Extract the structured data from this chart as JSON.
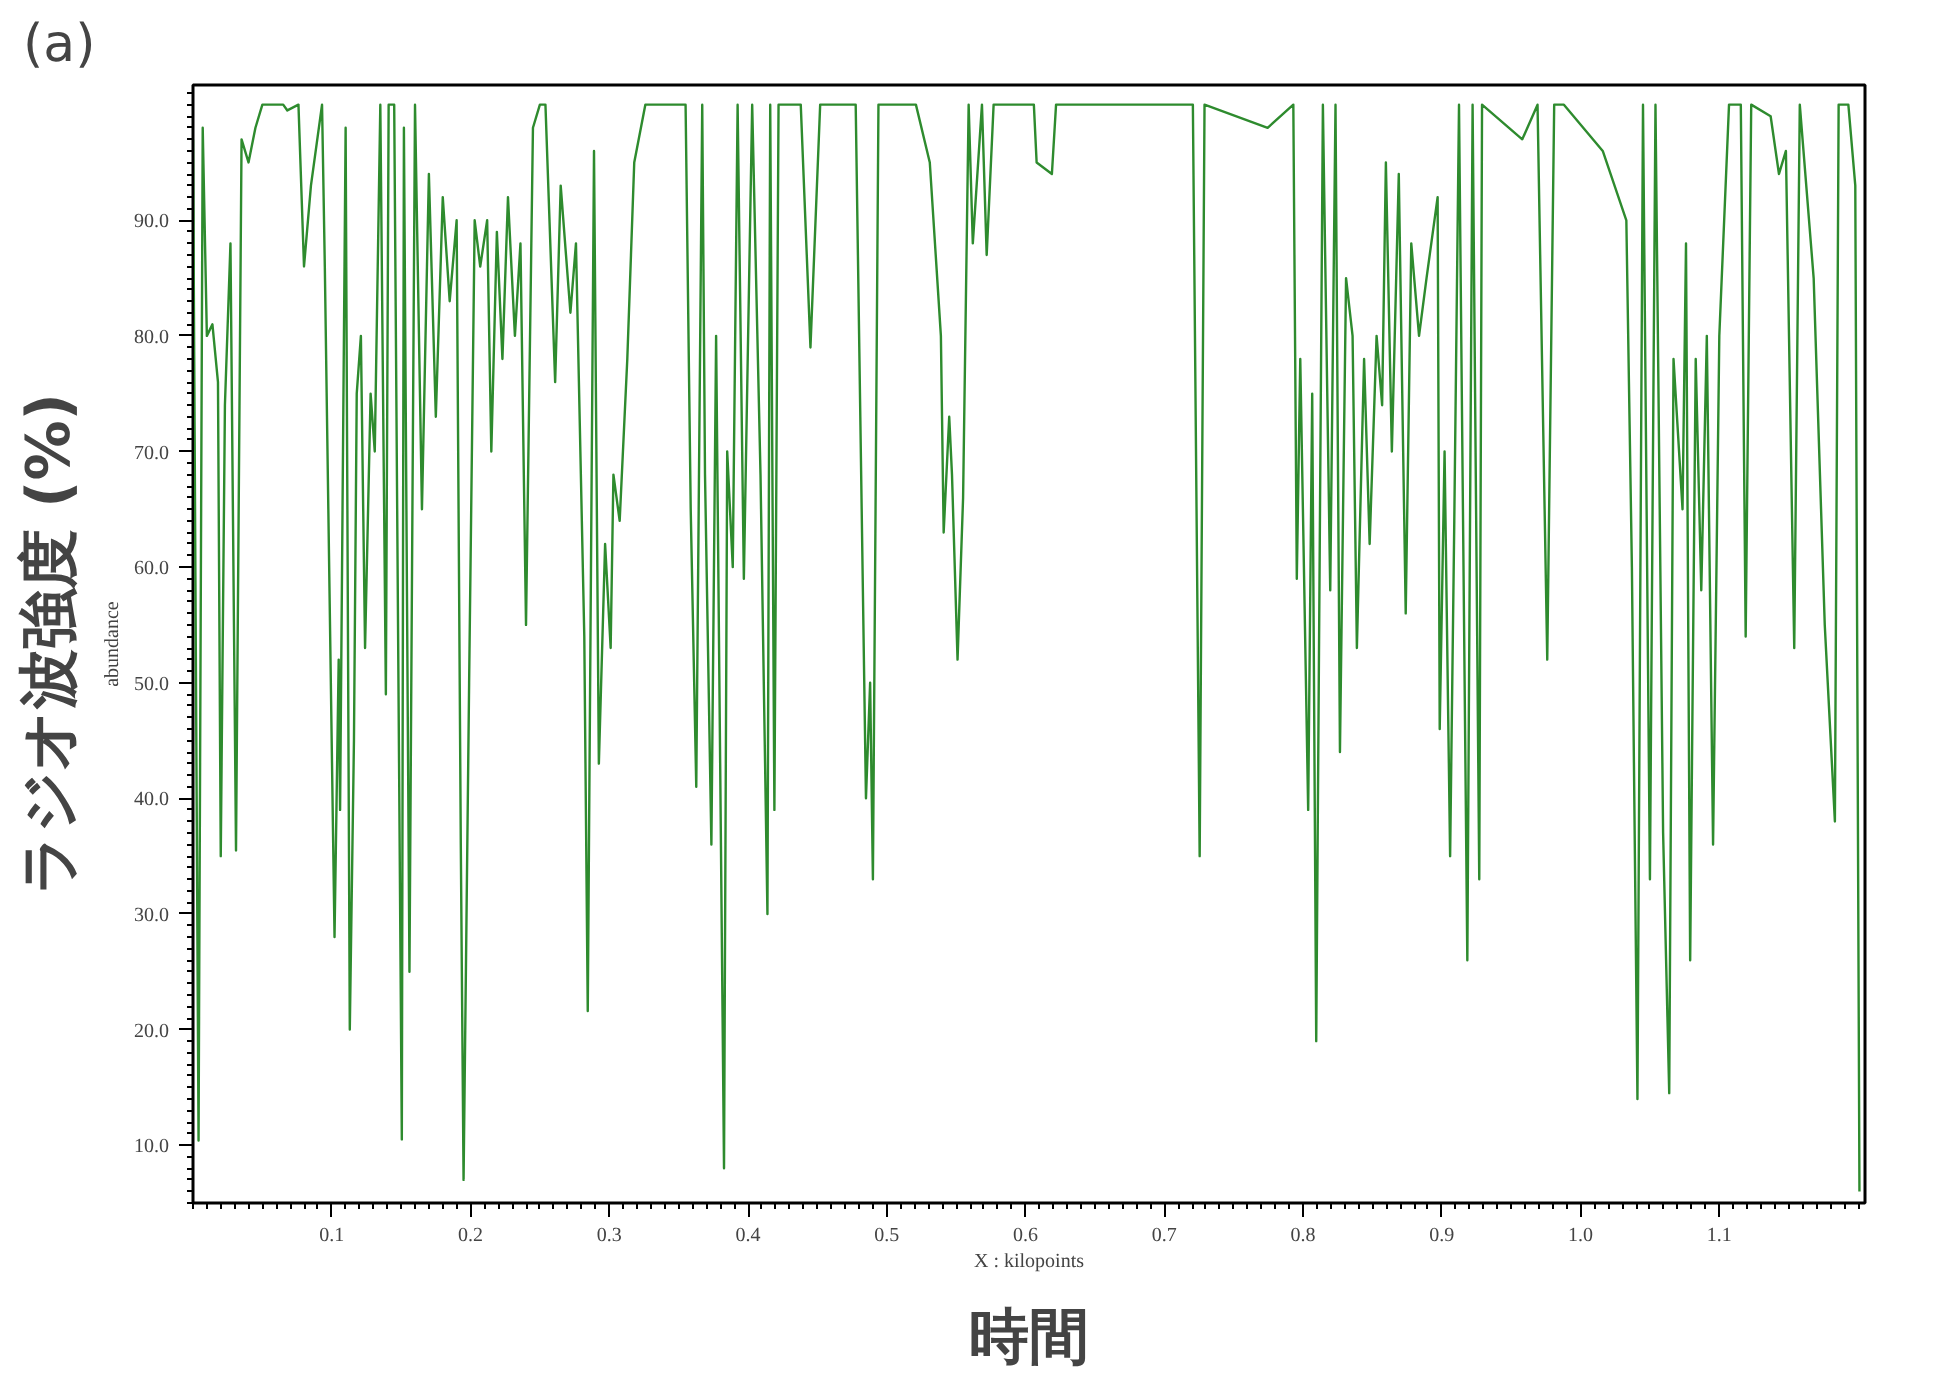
{
  "chart_data": {
    "type": "line",
    "xlabel": "時間",
    "ylabel": "ラジオ波強度 (%)",
    "annotations": [
      "(a)",
      "abundance",
      "X : kilopoints"
    ],
    "xlim": [
      0,
      1.205
    ],
    "ylim": [
      5,
      101.7
    ],
    "xticks": [
      0.1,
      0.2,
      0.3,
      0.4,
      0.5,
      0.6,
      0.7,
      0.8,
      0.9,
      {
        "value": 1.0,
        "label": "1.0"
      },
      1.1
    ],
    "yticks": [
      {
        "value": 10,
        "label": "10.0"
      },
      {
        "value": 20,
        "label": "20.0"
      },
      {
        "value": 30,
        "label": "30.0"
      },
      {
        "value": 40,
        "label": "40.0"
      },
      {
        "value": 50,
        "label": "50.0"
      },
      {
        "value": 60,
        "label": "60.0"
      },
      {
        "value": 70,
        "label": "70.0"
      },
      {
        "value": 80,
        "label": "80.0"
      },
      {
        "value": 90,
        "label": "90.0"
      }
    ],
    "grid": false,
    "marker": "none",
    "line_style": "solid",
    "series": [
      {
        "color": "#2e8b2e",
        "x": [
          0.0,
          0.004,
          0.007,
          0.01,
          0.014,
          0.018,
          0.02,
          0.023,
          0.027,
          0.031,
          0.035,
          0.04,
          0.045,
          0.05,
          0.065,
          0.068,
          0.076,
          0.08,
          0.085,
          0.093,
          0.095,
          0.102,
          0.105,
          0.106,
          0.11,
          0.113,
          0.116,
          0.118,
          0.121,
          0.124,
          0.128,
          0.131,
          0.135,
          0.139,
          0.141,
          0.145,
          0.1505,
          0.152,
          0.156,
          0.16,
          0.165,
          0.17,
          0.175,
          0.18,
          0.185,
          0.19,
          0.193,
          0.195,
          0.199,
          0.203,
          0.207,
          0.212,
          0.215,
          0.219,
          0.223,
          0.227,
          0.232,
          0.236,
          0.24,
          0.245,
          0.25,
          0.254,
          0.261,
          0.265,
          0.272,
          0.276,
          0.282,
          0.2845,
          0.289,
          0.2925,
          0.297,
          0.301,
          0.303,
          0.3075,
          0.313,
          0.318,
          0.326,
          0.355,
          0.3587,
          0.3627,
          0.367,
          0.369,
          0.3736,
          0.377,
          0.3827,
          0.385,
          0.389,
          0.3925,
          0.397,
          0.403,
          0.409,
          0.414,
          0.416,
          0.419,
          0.422,
          0.438,
          0.445,
          0.452,
          0.4776,
          0.485,
          0.488,
          0.49,
          0.494,
          0.521,
          0.531,
          0.539,
          0.541,
          0.545,
          0.547,
          0.551,
          0.555,
          0.559,
          0.562,
          0.5686,
          0.572,
          0.577,
          0.606,
          0.608,
          0.619,
          0.622,
          0.7206,
          0.7255,
          0.729,
          0.7745,
          0.793,
          0.7955,
          0.798,
          0.8037,
          0.8066,
          0.8095,
          0.8143,
          0.8196,
          0.8234,
          0.8266,
          0.831,
          0.8357,
          0.8388,
          0.844,
          0.848,
          0.853,
          0.857,
          0.8597,
          0.864,
          0.869,
          0.874,
          0.878,
          0.8836,
          0.889,
          0.897,
          0.8985,
          0.902,
          0.906,
          0.909,
          0.9124,
          0.9184,
          0.9222,
          0.927,
          0.929,
          0.958,
          0.969,
          0.976,
          0.981,
          0.988,
          1.016,
          1.033,
          1.037,
          1.041,
          1.045,
          1.05,
          1.054,
          1.0595,
          1.0639,
          1.067,
          1.0735,
          1.076,
          1.079,
          1.083,
          1.087,
          1.091,
          1.0955,
          1.1,
          1.107,
          1.1155,
          1.119,
          1.123,
          1.137,
          1.143,
          1.148,
          1.154,
          1.158,
          1.168,
          1.176,
          1.1833,
          1.186,
          1.193,
          1.198,
          1.201
        ],
        "values": [
          97,
          10.4,
          98,
          80,
          81,
          76,
          35,
          74,
          88,
          35.5,
          97,
          95,
          98,
          100,
          100,
          99.5,
          100,
          86,
          93,
          100,
          86,
          28,
          52,
          39,
          98,
          20,
          45,
          75,
          80,
          53,
          75,
          70,
          100,
          49,
          100,
          100,
          10.5,
          98,
          25,
          100,
          65,
          94,
          73,
          92,
          83,
          90,
          36,
          7,
          50,
          90,
          86,
          90,
          70,
          89,
          78,
          92,
          80,
          88,
          55,
          98,
          100,
          100,
          76,
          93,
          82,
          88,
          54,
          21.6,
          96,
          43,
          62,
          53,
          68,
          64,
          78,
          95,
          100,
          100,
          65,
          41,
          100,
          68,
          36,
          80,
          8,
          70,
          60,
          100,
          59,
          100,
          68,
          30,
          100,
          39,
          100,
          100,
          79,
          100,
          100,
          40,
          50,
          33,
          100,
          100,
          95,
          80,
          63,
          73,
          68,
          52,
          66,
          100,
          88,
          100,
          87,
          100,
          100,
          95,
          94,
          100,
          100,
          35,
          100,
          98,
          100,
          59,
          78,
          39,
          75,
          19,
          100,
          58,
          100,
          44,
          85,
          80,
          53,
          78,
          62,
          80,
          74,
          95,
          70,
          94,
          56,
          88,
          80,
          85,
          92,
          46,
          70,
          35,
          64,
          100,
          26,
          100,
          33,
          100,
          97,
          100,
          52,
          100,
          100,
          96,
          90,
          60,
          14,
          100,
          33,
          100,
          37,
          14.5,
          78,
          65,
          88,
          26,
          78,
          58,
          80,
          36,
          80,
          100,
          100,
          54,
          100,
          99,
          94,
          96,
          53,
          100,
          85,
          55,
          38,
          100,
          100,
          93,
          6
        ]
      }
    ]
  }
}
